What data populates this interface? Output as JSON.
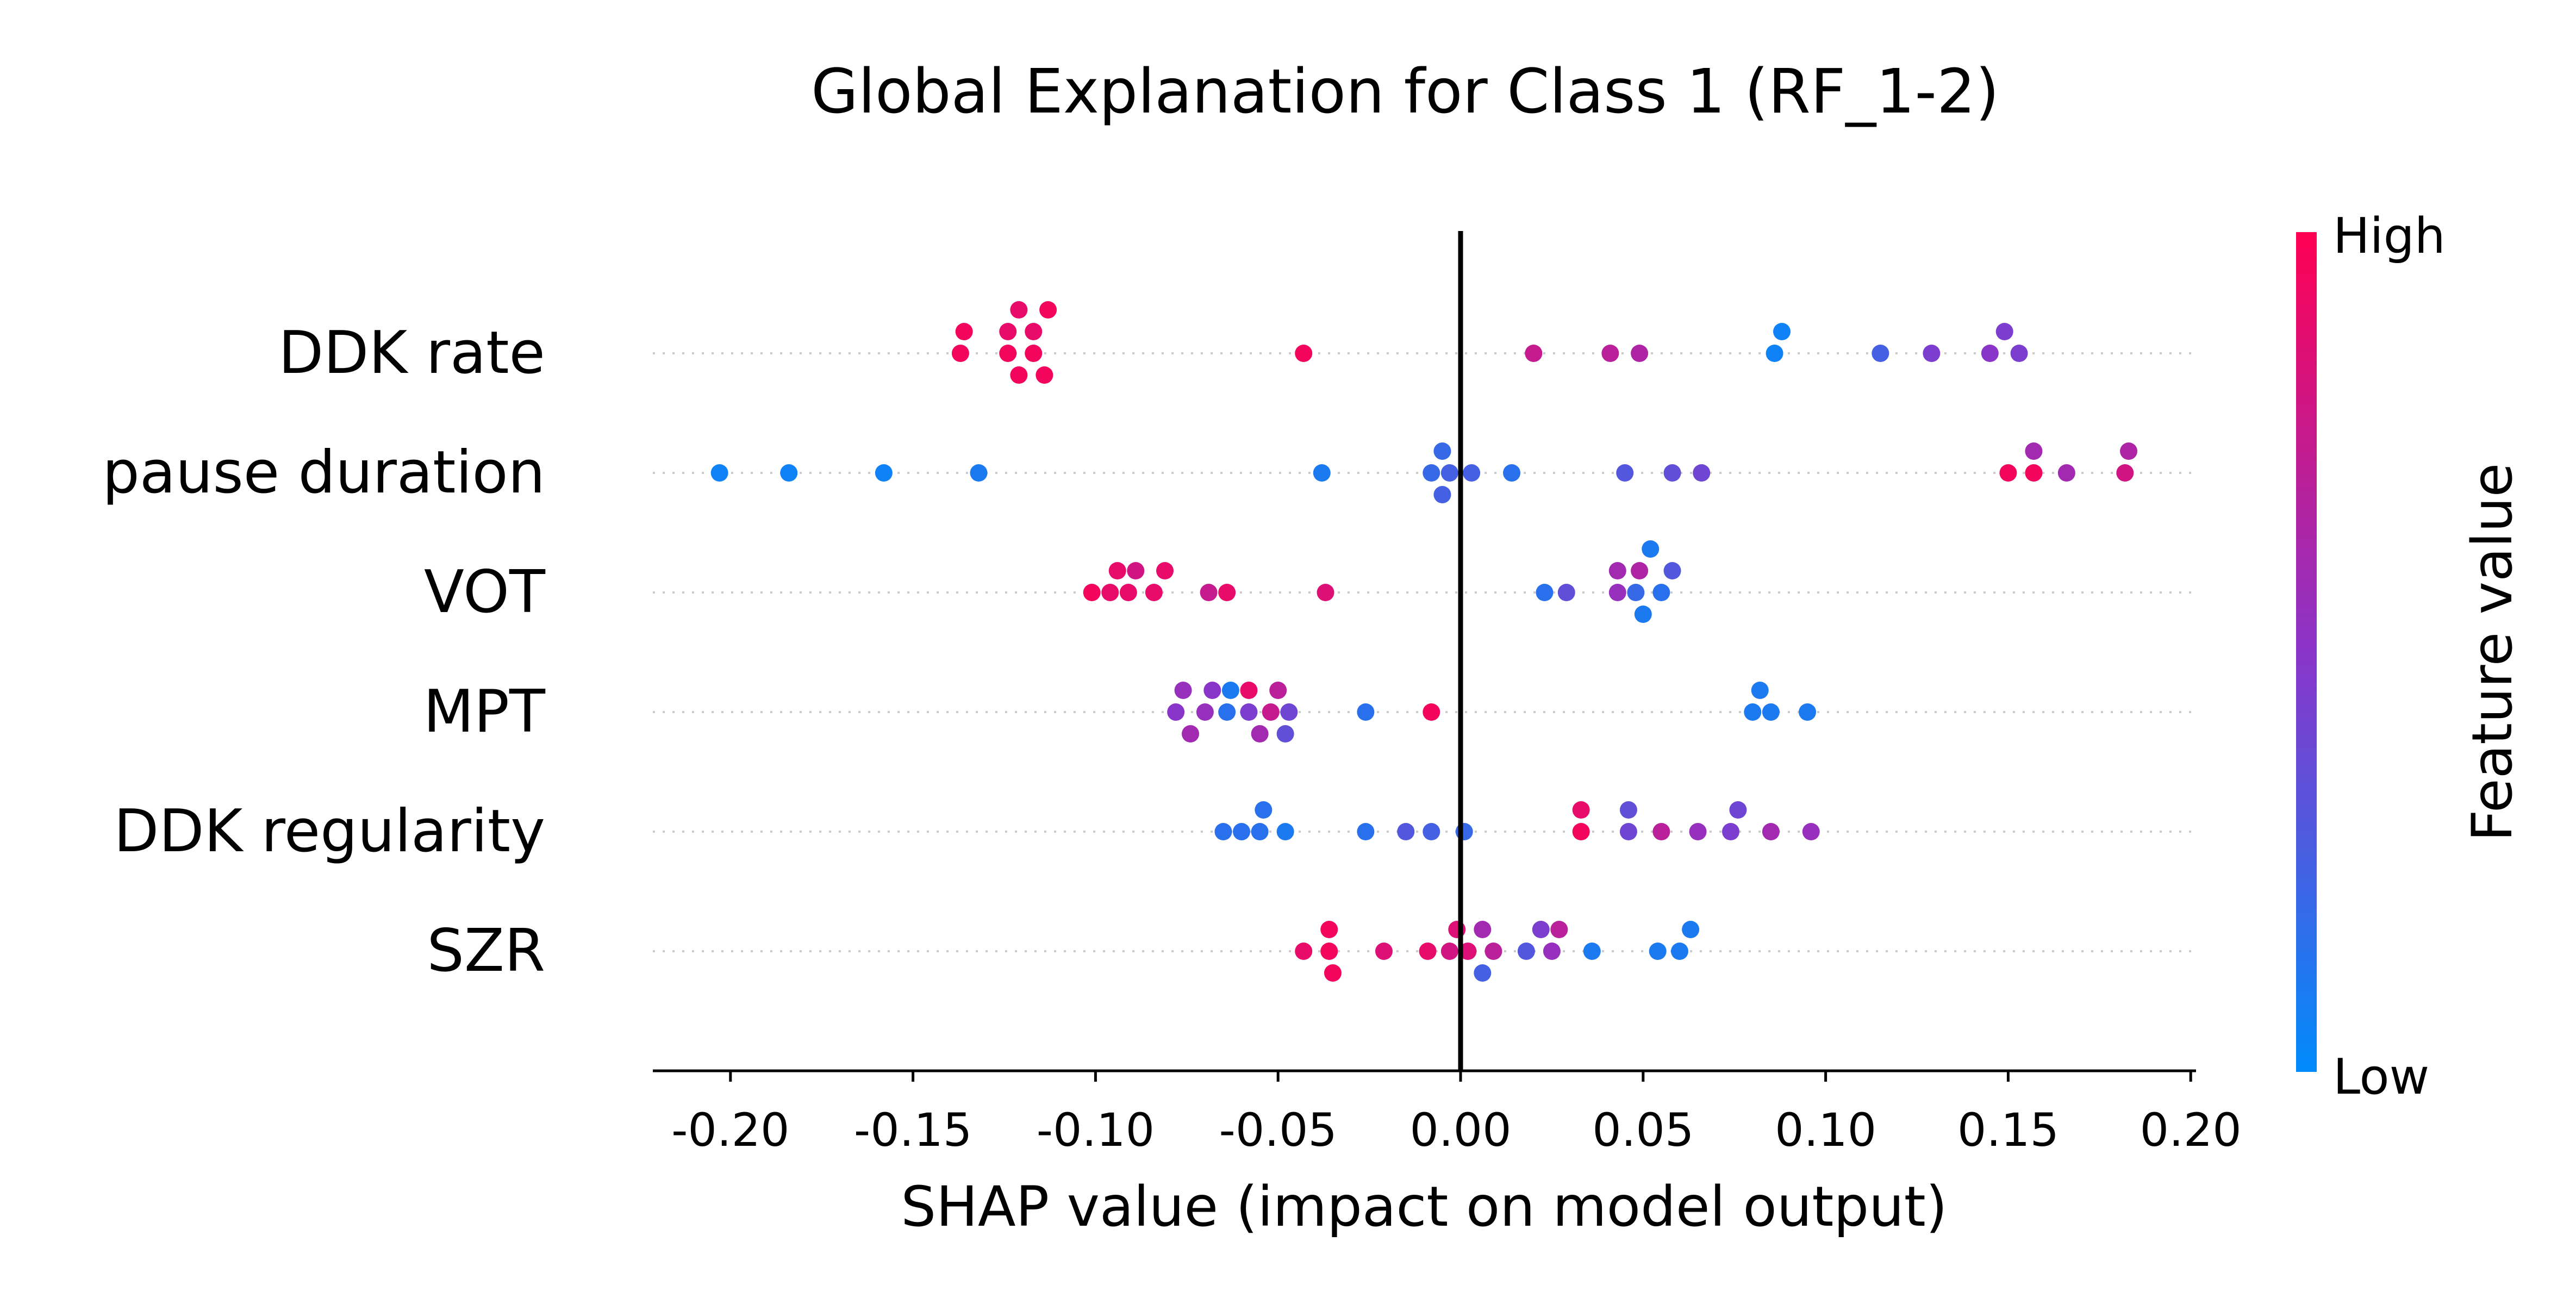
{
  "chart_data": {
    "type": "scatter",
    "title": "Global Explanation for Class 1 (RF_1-2)",
    "xlabel": "SHAP value (impact on model output)",
    "xlim": [
      -0.22,
      0.2
    ],
    "x_ticks": [
      "-0.20",
      "-0.15",
      "-0.10",
      "-0.05",
      "0.00",
      "0.05",
      "0.10",
      "0.15",
      "0.20"
    ],
    "x_tick_values": [
      -0.2,
      -0.15,
      -0.1,
      -0.05,
      0.0,
      0.05,
      0.1,
      0.15,
      0.2
    ],
    "features": [
      "DDK rate",
      "pause duration",
      "VOT",
      "MPT",
      "DDK regularity",
      "SZR"
    ],
    "colorbar": {
      "label": "Feature value",
      "high_label": "High",
      "low_label": "Low",
      "high_color": "#ff0052",
      "low_color": "#008bfb"
    },
    "grid": false,
    "points": [
      {
        "feature": "DDK rate",
        "values": [
          {
            "x": -0.136,
            "f": 0.95
          },
          {
            "x": -0.137,
            "f": 0.95
          },
          {
            "x": -0.124,
            "f": 0.95
          },
          {
            "x": -0.121,
            "f": 0.95
          },
          {
            "x": -0.117,
            "f": 0.95
          },
          {
            "x": -0.114,
            "f": 0.95
          },
          {
            "x": -0.124,
            "f": 0.9
          },
          {
            "x": -0.121,
            "f": 0.9
          },
          {
            "x": -0.117,
            "f": 0.9
          },
          {
            "x": -0.113,
            "f": 0.95
          },
          {
            "x": -0.043,
            "f": 0.95
          },
          {
            "x": 0.02,
            "f": 0.75
          },
          {
            "x": 0.041,
            "f": 0.7
          },
          {
            "x": 0.049,
            "f": 0.65
          },
          {
            "x": 0.086,
            "f": 0.05
          },
          {
            "x": 0.088,
            "f": 0.05
          },
          {
            "x": 0.115,
            "f": 0.25
          },
          {
            "x": 0.129,
            "f": 0.45
          },
          {
            "x": 0.145,
            "f": 0.5
          },
          {
            "x": 0.149,
            "f": 0.45
          },
          {
            "x": 0.153,
            "f": 0.45
          }
        ]
      },
      {
        "feature": "pause duration",
        "values": [
          {
            "x": -0.203,
            "f": 0.05
          },
          {
            "x": -0.184,
            "f": 0.05
          },
          {
            "x": -0.158,
            "f": 0.05
          },
          {
            "x": -0.132,
            "f": 0.1
          },
          {
            "x": -0.038,
            "f": 0.1
          },
          {
            "x": -0.008,
            "f": 0.2
          },
          {
            "x": -0.005,
            "f": 0.2
          },
          {
            "x": -0.005,
            "f": 0.25
          },
          {
            "x": -0.003,
            "f": 0.25
          },
          {
            "x": 0.003,
            "f": 0.25
          },
          {
            "x": 0.014,
            "f": 0.15
          },
          {
            "x": 0.045,
            "f": 0.3
          },
          {
            "x": 0.058,
            "f": 0.35
          },
          {
            "x": 0.066,
            "f": 0.4
          },
          {
            "x": 0.15,
            "f": 0.95
          },
          {
            "x": 0.157,
            "f": 0.95
          },
          {
            "x": 0.157,
            "f": 0.6
          },
          {
            "x": 0.166,
            "f": 0.6
          },
          {
            "x": 0.182,
            "f": 0.8
          },
          {
            "x": 0.183,
            "f": 0.65
          }
        ]
      },
      {
        "feature": "VOT",
        "values": [
          {
            "x": -0.101,
            "f": 0.95
          },
          {
            "x": -0.096,
            "f": 0.9
          },
          {
            "x": -0.094,
            "f": 0.9
          },
          {
            "x": -0.091,
            "f": 0.9
          },
          {
            "x": -0.089,
            "f": 0.8
          },
          {
            "x": -0.084,
            "f": 0.9
          },
          {
            "x": -0.081,
            "f": 0.9
          },
          {
            "x": -0.069,
            "f": 0.75
          },
          {
            "x": -0.064,
            "f": 0.9
          },
          {
            "x": -0.037,
            "f": 0.85
          },
          {
            "x": 0.023,
            "f": 0.15
          },
          {
            "x": 0.029,
            "f": 0.35
          },
          {
            "x": 0.043,
            "f": 0.55
          },
          {
            "x": 0.043,
            "f": 0.6
          },
          {
            "x": 0.049,
            "f": 0.65
          },
          {
            "x": 0.048,
            "f": 0.2
          },
          {
            "x": 0.05,
            "f": 0.1
          },
          {
            "x": 0.052,
            "f": 0.1
          },
          {
            "x": 0.055,
            "f": 0.15
          },
          {
            "x": 0.058,
            "f": 0.3
          }
        ]
      },
      {
        "feature": "MPT",
        "values": [
          {
            "x": -0.078,
            "f": 0.5
          },
          {
            "x": -0.076,
            "f": 0.55
          },
          {
            "x": -0.074,
            "f": 0.6
          },
          {
            "x": -0.07,
            "f": 0.55
          },
          {
            "x": -0.068,
            "f": 0.5
          },
          {
            "x": -0.064,
            "f": 0.15
          },
          {
            "x": -0.063,
            "f": 0.1
          },
          {
            "x": -0.058,
            "f": 0.45
          },
          {
            "x": -0.058,
            "f": 0.9
          },
          {
            "x": -0.055,
            "f": 0.6
          },
          {
            "x": -0.052,
            "f": 0.75
          },
          {
            "x": -0.05,
            "f": 0.7
          },
          {
            "x": -0.048,
            "f": 0.35
          },
          {
            "x": -0.047,
            "f": 0.4
          },
          {
            "x": -0.026,
            "f": 0.15
          },
          {
            "x": -0.008,
            "f": 0.95
          },
          {
            "x": 0.08,
            "f": 0.1
          },
          {
            "x": 0.082,
            "f": 0.1
          },
          {
            "x": 0.085,
            "f": 0.1
          },
          {
            "x": 0.095,
            "f": 0.1
          }
        ]
      },
      {
        "feature": "DDK regularity",
        "values": [
          {
            "x": -0.065,
            "f": 0.15
          },
          {
            "x": -0.06,
            "f": 0.15
          },
          {
            "x": -0.055,
            "f": 0.15
          },
          {
            "x": -0.054,
            "f": 0.15
          },
          {
            "x": -0.048,
            "f": 0.1
          },
          {
            "x": -0.026,
            "f": 0.15
          },
          {
            "x": -0.015,
            "f": 0.3
          },
          {
            "x": -0.008,
            "f": 0.25
          },
          {
            "x": 0.001,
            "f": 0.2
          },
          {
            "x": 0.033,
            "f": 0.95
          },
          {
            "x": 0.033,
            "f": 0.9
          },
          {
            "x": 0.046,
            "f": 0.4
          },
          {
            "x": 0.046,
            "f": 0.35
          },
          {
            "x": 0.055,
            "f": 0.7
          },
          {
            "x": 0.065,
            "f": 0.55
          },
          {
            "x": 0.074,
            "f": 0.45
          },
          {
            "x": 0.076,
            "f": 0.4
          },
          {
            "x": 0.085,
            "f": 0.6
          },
          {
            "x": 0.096,
            "f": 0.55
          }
        ]
      },
      {
        "feature": "SZR",
        "values": [
          {
            "x": -0.043,
            "f": 0.9
          },
          {
            "x": -0.036,
            "f": 0.95
          },
          {
            "x": -0.036,
            "f": 0.95
          },
          {
            "x": -0.035,
            "f": 0.95
          },
          {
            "x": -0.021,
            "f": 0.85
          },
          {
            "x": -0.009,
            "f": 0.9
          },
          {
            "x": -0.003,
            "f": 0.8
          },
          {
            "x": -0.001,
            "f": 0.85
          },
          {
            "x": 0.002,
            "f": 0.85
          },
          {
            "x": 0.006,
            "f": 0.6
          },
          {
            "x": 0.006,
            "f": 0.25
          },
          {
            "x": 0.009,
            "f": 0.7
          },
          {
            "x": 0.018,
            "f": 0.3
          },
          {
            "x": 0.022,
            "f": 0.45
          },
          {
            "x": 0.025,
            "f": 0.55
          },
          {
            "x": 0.027,
            "f": 0.7
          },
          {
            "x": 0.036,
            "f": 0.1
          },
          {
            "x": 0.054,
            "f": 0.1
          },
          {
            "x": 0.06,
            "f": 0.1
          },
          {
            "x": 0.063,
            "f": 0.1
          }
        ]
      }
    ]
  }
}
